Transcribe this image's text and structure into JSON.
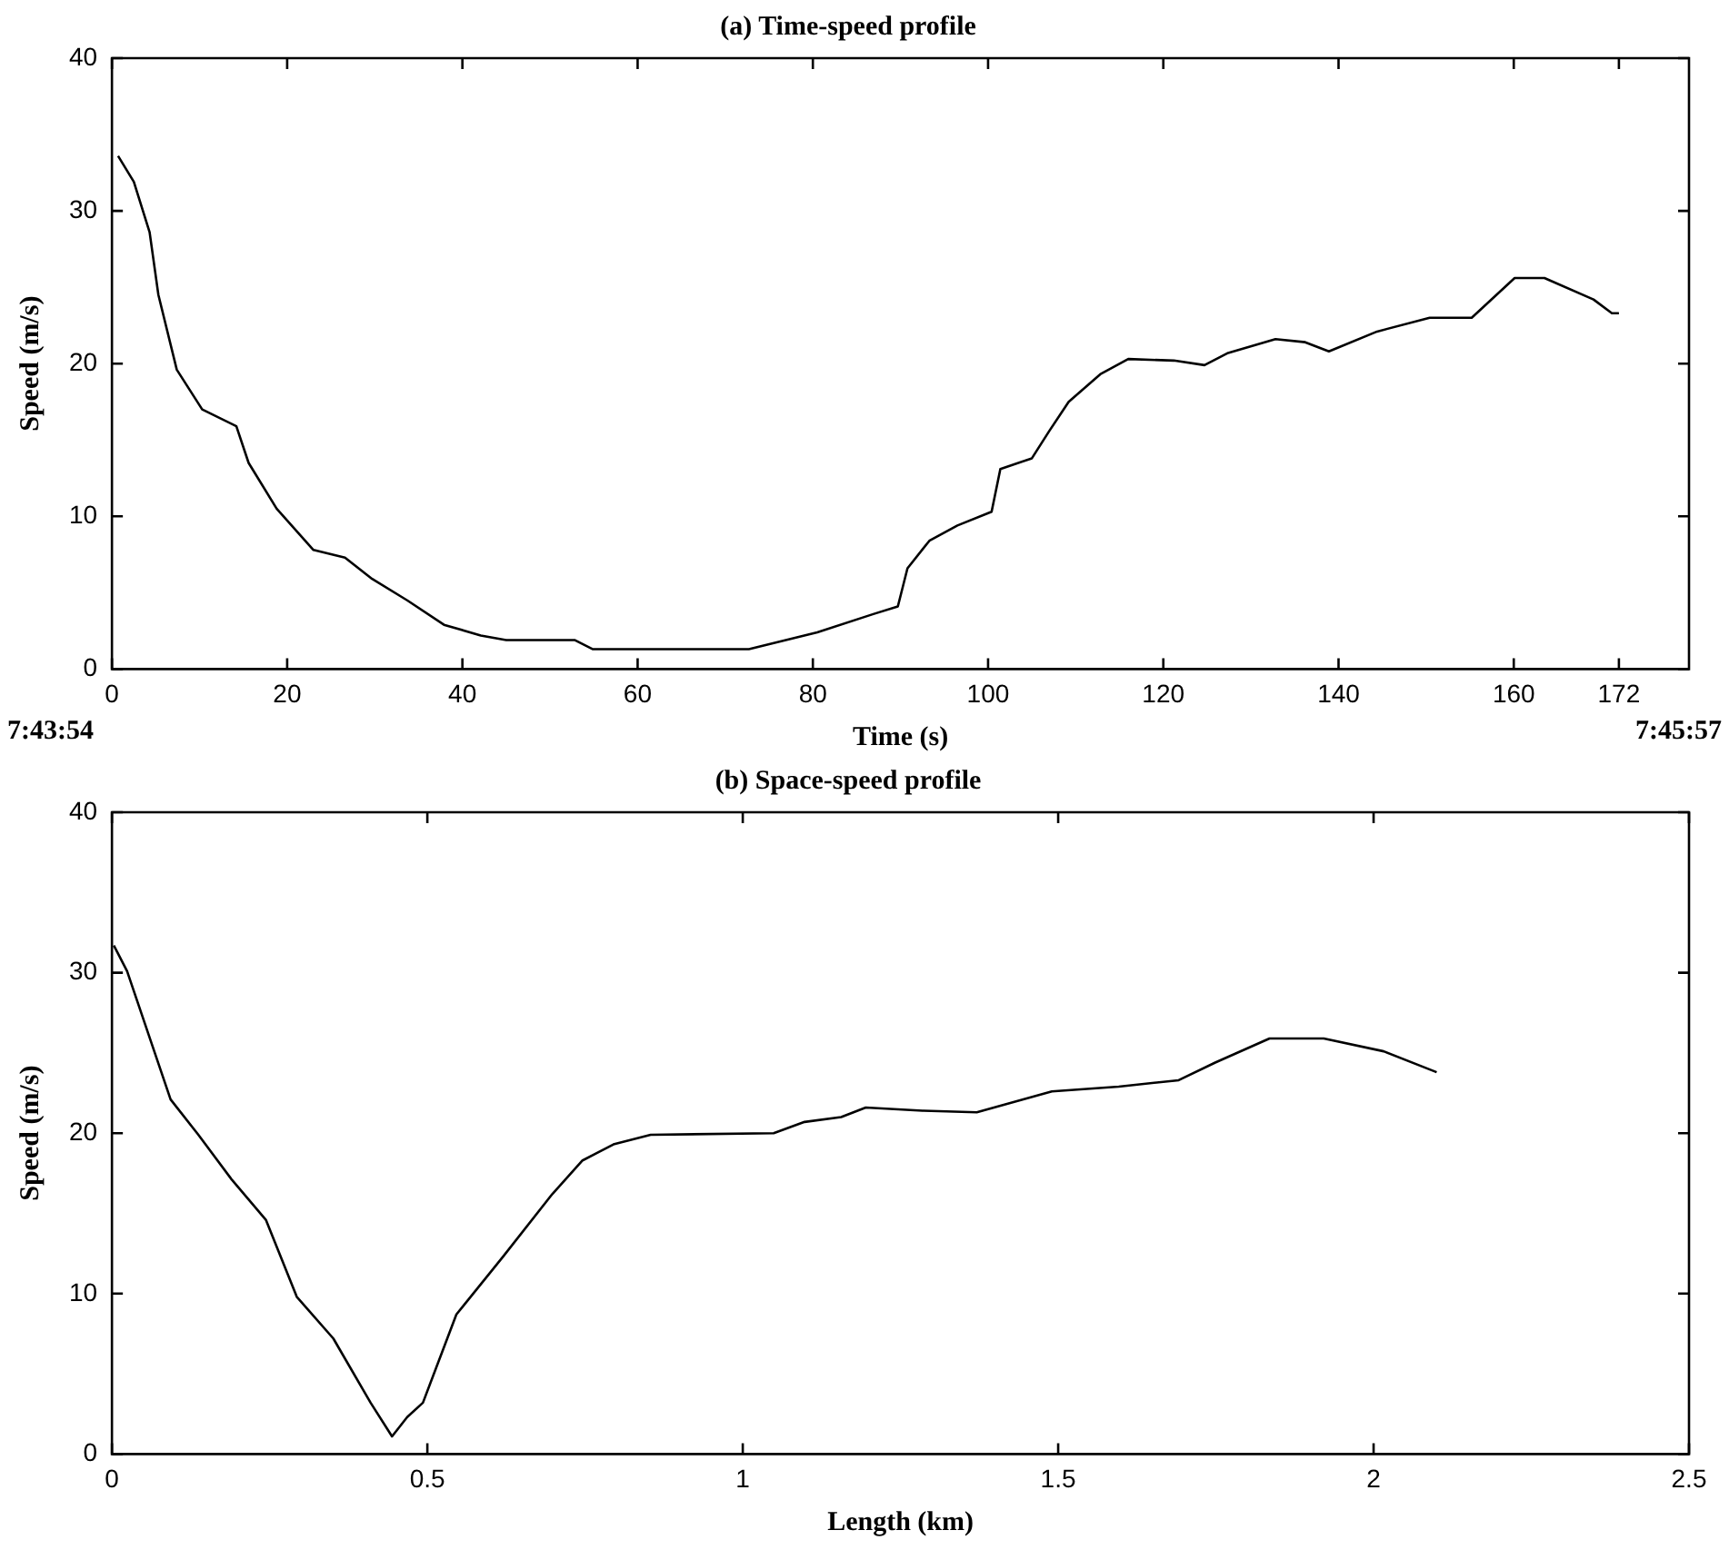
{
  "chart_data": [
    {
      "type": "line",
      "title": "(a) Time-speed profile",
      "xlabel": "Time (s)",
      "ylabel": "Speed (m/s)",
      "xlim": [
        0,
        180
      ],
      "xticks": [
        0,
        20,
        40,
        60,
        80,
        100,
        120,
        140,
        160,
        172
      ],
      "ylim": [
        0,
        40
      ],
      "yticks": [
        0,
        10,
        20,
        30,
        40
      ],
      "grid": false,
      "legend": false,
      "annotations": [
        "7:43:54",
        "7:45:57"
      ],
      "series": [
        {
          "color": "#000000",
          "x": [
            0.7,
            2.5,
            4.3,
            5.3,
            7.4,
            10.3,
            14.2,
            15.6,
            18.8,
            23,
            26.6,
            29.7,
            33.7,
            37.9,
            42.1,
            45,
            52.8,
            54.9,
            72.7,
            80.5,
            86.9,
            89.7,
            90.8,
            93.3,
            96.5,
            100.4,
            101.4,
            105,
            107,
            109.2,
            112.8,
            116,
            121.2,
            124.7,
            127.4,
            132.8,
            136.2,
            138.9,
            144.4,
            150.4,
            155.2,
            160.1,
            163.5,
            169.1,
            171.2,
            172
          ],
          "values": [
            33.6,
            31.9,
            28.6,
            24.5,
            19.6,
            17.0,
            15.9,
            13.5,
            10.5,
            7.8,
            7.3,
            5.9,
            4.5,
            2.9,
            2.2,
            1.9,
            1.9,
            1.3,
            1.3,
            2.4,
            3.6,
            4.1,
            6.6,
            8.4,
            9.4,
            10.3,
            13.1,
            13.8,
            15.6,
            17.5,
            19.3,
            20.3,
            20.2,
            19.9,
            20.7,
            21.6,
            21.4,
            20.8,
            22.1,
            23.0,
            23.0,
            25.6,
            25.6,
            24.2,
            23.3,
            23.3
          ]
        }
      ]
    },
    {
      "type": "line",
      "title": "(b) Space-speed profile",
      "xlabel": "Length (km)",
      "ylabel": "Speed (m/s)",
      "xlim": [
        0,
        2.5
      ],
      "xticks": [
        0,
        0.5,
        1,
        1.5,
        2,
        2.5
      ],
      "ylim": [
        0,
        40
      ],
      "yticks": [
        0,
        10,
        20,
        30,
        40
      ],
      "grid": false,
      "legend": false,
      "series": [
        {
          "color": "#000000",
          "x": [
            0.003,
            0.024,
            0.093,
            0.137,
            0.19,
            0.244,
            0.293,
            0.351,
            0.41,
            0.444,
            0.468,
            0.493,
            0.546,
            0.62,
            0.698,
            0.746,
            0.795,
            0.854,
            1.049,
            1.098,
            1.156,
            1.195,
            1.285,
            1.371,
            1.49,
            1.596,
            1.691,
            1.749,
            1.835,
            1.921,
            2.016,
            2.1
          ],
          "values": [
            31.7,
            30.1,
            22.1,
            19.9,
            17.1,
            14.6,
            9.8,
            7.2,
            3.2,
            1.1,
            2.3,
            3.2,
            8.7,
            12.3,
            16.2,
            18.3,
            19.3,
            19.9,
            20.0,
            20.7,
            21.0,
            21.6,
            21.4,
            21.3,
            22.6,
            22.9,
            23.3,
            24.4,
            25.9,
            25.9,
            25.1,
            23.8
          ]
        }
      ]
    }
  ]
}
